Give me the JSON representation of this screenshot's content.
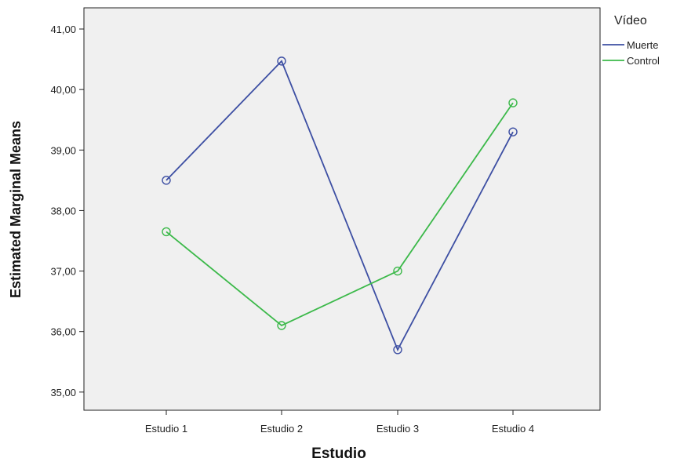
{
  "chart_data": {
    "type": "line",
    "xlabel": "Estudio",
    "ylabel": "Estimated Marginal Means",
    "categories": [
      "Estudio 1",
      "Estudio 2",
      "Estudio 3",
      "Estudio 4"
    ],
    "ylim": [
      34.7,
      41.35
    ],
    "yticks": [
      "35,00",
      "36,00",
      "37,00",
      "38,00",
      "39,00",
      "40,00",
      "41,00"
    ],
    "ytick_values": [
      35,
      36,
      37,
      38,
      39,
      40,
      41
    ],
    "legend_title": "Vídeo",
    "legend_position": "top-right, outside plot",
    "grid": false,
    "plot_background": "#f0f0f0",
    "markers": "open circle",
    "series": [
      {
        "name": "Muerte",
        "color": "#3d4fa3",
        "values": [
          38.5,
          40.47,
          35.7,
          39.3
        ]
      },
      {
        "name": "Control",
        "color": "#3cb94a",
        "values": [
          37.65,
          36.1,
          37.0,
          39.78
        ]
      }
    ]
  }
}
